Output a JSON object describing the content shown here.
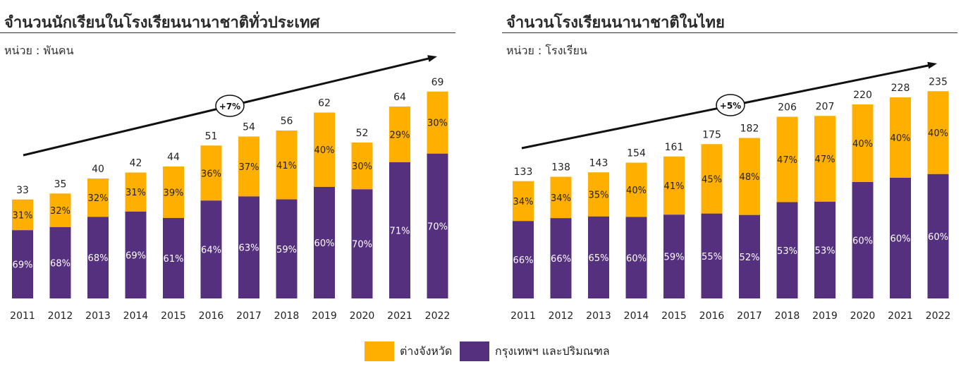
{
  "colors": {
    "orange": "#FFAF00",
    "purple": "#55307F",
    "arrow": "#111111"
  },
  "charts": [
    {
      "title": "จำนวนนักเรียนในโรงเรียนนานาชาติทั่วประเทศ",
      "unit": "หน่วย : พันคน",
      "growth_label": "+7%"
    },
    {
      "title": "จำนวนโรงเรียนนานาชาติในไทย",
      "unit": "หน่วย : โรงเรียน",
      "growth_label": "+5%"
    }
  ],
  "legend": {
    "orange_label": "ต่างจังหวัด",
    "purple_label": "กรุงเทพฯ และปริมณฑล"
  },
  "chart_data": [
    {
      "type": "bar",
      "stacked": true,
      "categories": [
        "2011",
        "2012",
        "2013",
        "2014",
        "2015",
        "2016",
        "2017",
        "2018",
        "2019",
        "2020",
        "2021",
        "2022"
      ],
      "totals": [
        33,
        35,
        40,
        42,
        44,
        51,
        54,
        56,
        62,
        52,
        64,
        69
      ],
      "series": [
        {
          "name": "กรุงเทพฯ และปริมณฑล",
          "percent_labels": [
            "69%",
            "68%",
            "68%",
            "69%",
            "61%",
            "64%",
            "63%",
            "59%",
            "60%",
            "70%",
            "71%",
            "70%"
          ]
        },
        {
          "name": "ต่างจังหวัด",
          "percent_labels": [
            "31%",
            "32%",
            "32%",
            "31%",
            "39%",
            "36%",
            "37%",
            "41%",
            "40%",
            "30%",
            "29%",
            "30%"
          ]
        }
      ],
      "ylim": [
        0,
        80
      ]
    },
    {
      "type": "bar",
      "stacked": true,
      "categories": [
        "2011",
        "2012",
        "2013",
        "2014",
        "2015",
        "2016",
        "2017",
        "2018",
        "2019",
        "2020",
        "2021",
        "2022"
      ],
      "totals": [
        133,
        138,
        143,
        154,
        161,
        175,
        182,
        206,
        207,
        220,
        228,
        235
      ],
      "series": [
        {
          "name": "กรุงเทพฯ และปริมณฑล",
          "percent_labels": [
            "66%",
            "66%",
            "65%",
            "60%",
            "59%",
            "55%",
            "52%",
            "53%",
            "53%",
            "60%",
            "60%",
            "60%"
          ]
        },
        {
          "name": "ต่างจังหวัด",
          "percent_labels": [
            "34%",
            "34%",
            "35%",
            "40%",
            "41%",
            "45%",
            "48%",
            "47%",
            "47%",
            "40%",
            "40%",
            "40%"
          ]
        }
      ],
      "ylim": [
        0,
        272
      ]
    }
  ]
}
